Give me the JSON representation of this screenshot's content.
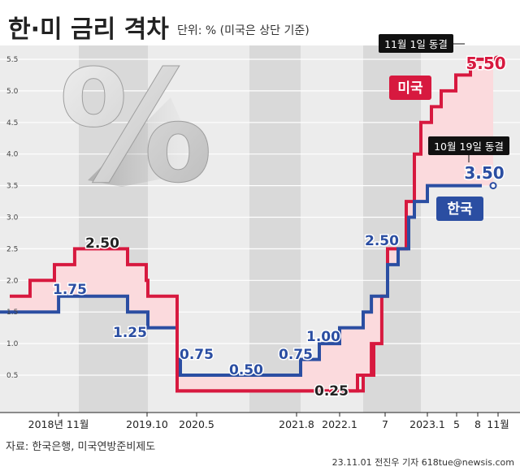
{
  "header": {
    "title": "한·미 금리 격차",
    "unit": "단위: % (미국은 상단 기준)"
  },
  "footer": {
    "source": "자료: 한국은행, 미국연방준비제도",
    "credit": "23.11.01 전진우 기자 618tue@newsis.com"
  },
  "colors": {
    "us": "#d7193f",
    "kr": "#2b4ea2",
    "us_fill": "#fbdadd",
    "black_line": "#231f20",
    "gray_band": "#d9d9d9",
    "light_band": "#ececec"
  },
  "callouts": {
    "us_freeze": "11월 1일 동결",
    "kr_freeze": "10월 19일 동결"
  },
  "chart_data": {
    "type": "line",
    "step": true,
    "title": "한·미 금리 격차",
    "xlabel": "",
    "ylabel": "%",
    "ylim": [
      0,
      5.7
    ],
    "yticks": [
      0.5,
      1.0,
      1.5,
      2.0,
      2.5,
      3.0,
      3.5,
      4.0,
      4.5,
      5.0,
      5.5
    ],
    "ytick_labels": [
      "0.5",
      "1.0",
      "1.5",
      "2.0",
      "2.5",
      "3.0",
      "3.5",
      "4.0",
      "4.5",
      "5.0",
      "5.5"
    ],
    "x_tick_labels": [
      "2018년 11월",
      "2019.10",
      "2020.5",
      "2021.8",
      "2022.1",
      "7",
      "2023.1",
      "5",
      "8",
      "11월"
    ],
    "series": [
      {
        "name": "미국",
        "points": [
          [
            "2018.3",
            1.75
          ],
          [
            "2018.6",
            2.0
          ],
          [
            "2018.9",
            2.25
          ],
          [
            "2018.12",
            2.5
          ],
          [
            "2019.7",
            2.25
          ],
          [
            "2019.9",
            2.0
          ],
          [
            "2019.10",
            1.75
          ],
          [
            "2020.3",
            0.25
          ],
          [
            "2022.3",
            0.5
          ],
          [
            "2022.5",
            1.0
          ],
          [
            "2022.6",
            1.75
          ],
          [
            "2022.7",
            2.5
          ],
          [
            "2022.9",
            3.25
          ],
          [
            "2022.11",
            4.0
          ],
          [
            "2022.12",
            4.5
          ],
          [
            "2023.2",
            4.75
          ],
          [
            "2023.3",
            5.0
          ],
          [
            "2023.5",
            5.25
          ],
          [
            "2023.7",
            5.5
          ],
          [
            "2023.11",
            5.5
          ]
        ]
      },
      {
        "name": "한국",
        "points": [
          [
            "2018.1",
            1.5
          ],
          [
            "2018.11",
            1.75
          ],
          [
            "2019.7",
            1.5
          ],
          [
            "2019.10",
            1.25
          ],
          [
            "2020.3",
            0.75
          ],
          [
            "2020.5",
            0.5
          ],
          [
            "2021.8",
            0.75
          ],
          [
            "2021.11",
            1.0
          ],
          [
            "2022.1",
            1.25
          ],
          [
            "2022.4",
            1.5
          ],
          [
            "2022.5",
            1.75
          ],
          [
            "2022.7",
            2.25
          ],
          [
            "2022.8",
            2.5
          ],
          [
            "2022.10",
            3.0
          ],
          [
            "2022.11",
            3.25
          ],
          [
            "2023.1",
            3.5
          ],
          [
            "2023.10",
            3.5
          ]
        ]
      }
    ],
    "annotations": [
      {
        "text": "2.50",
        "series": "미국"
      },
      {
        "text": "1.75",
        "series": "한국"
      },
      {
        "text": "1.25",
        "series": "한국"
      },
      {
        "text": "0.75",
        "series": "한국"
      },
      {
        "text": "0.50",
        "series": "한국"
      },
      {
        "text": "0.75",
        "series": "한국"
      },
      {
        "text": "1.00",
        "series": "한국"
      },
      {
        "text": "0.25",
        "series": "미국"
      },
      {
        "text": "2.50",
        "series": "한국"
      },
      {
        "text": "3.50",
        "series": "한국"
      },
      {
        "text": "5.50",
        "series": "미국"
      }
    ],
    "legend": [
      {
        "text": "미국",
        "series": "미국"
      },
      {
        "text": "한국",
        "series": "한국"
      }
    ],
    "decoration_symbol": "%"
  }
}
